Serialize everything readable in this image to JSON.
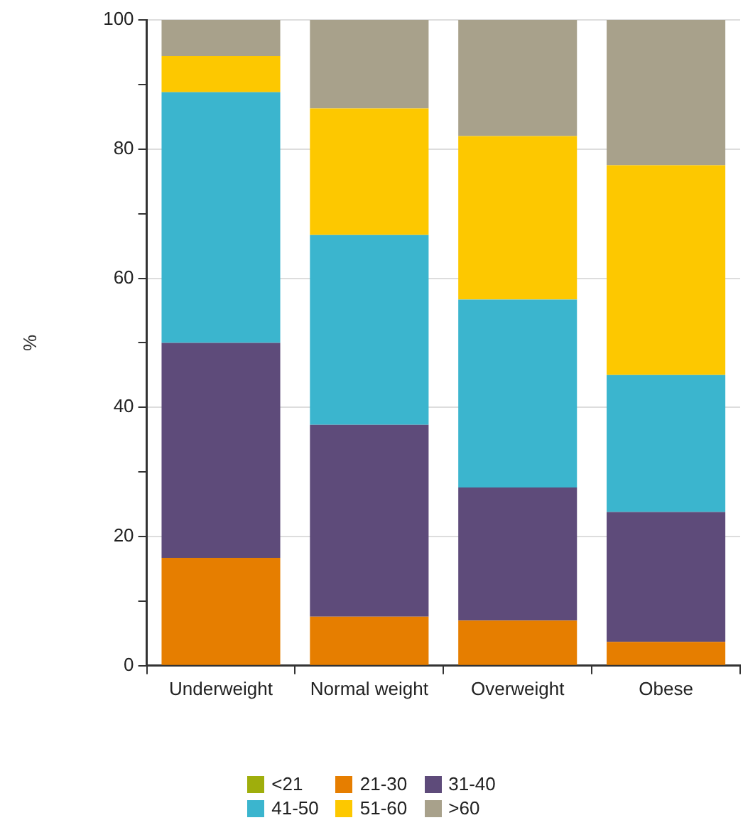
{
  "chart_data": {
    "type": "bar",
    "stacked": true,
    "ylabel": "%",
    "categories": [
      "Underweight",
      "Normal weight",
      "Overweight",
      "Obese"
    ],
    "ylim": [
      0,
      100
    ],
    "yticks": [
      0,
      {
        "value": 10,
        "label": null
      },
      20,
      {
        "value": 30,
        "label": null
      },
      40,
      {
        "value": 50,
        "label": null
      },
      60,
      {
        "value": 70,
        "label": null
      },
      80,
      {
        "value": 90,
        "label": null
      },
      100
    ],
    "grid": "y",
    "legend": "bottom",
    "series": [
      {
        "name": "<21",
        "color": "#9fae0c",
        "values": [
          0,
          0,
          0,
          0
        ]
      },
      {
        "name": "21-30",
        "color": "#e67e00",
        "values": [
          16.7,
          7.6,
          7.0,
          3.7
        ]
      },
      {
        "name": "31-40",
        "color": "#5e4b7a",
        "values": [
          33.3,
          29.7,
          20.6,
          20.1
        ]
      },
      {
        "name": "41-50",
        "color": "#3bb5ce",
        "values": [
          38.8,
          29.4,
          29.1,
          21.2
        ]
      },
      {
        "name": "51-60",
        "color": "#fdc800",
        "values": [
          5.6,
          19.6,
          25.3,
          32.5
        ]
      },
      {
        "name": ">60",
        "color": "#a8a18b",
        "values": [
          5.6,
          13.7,
          18.0,
          22.5
        ]
      }
    ]
  }
}
